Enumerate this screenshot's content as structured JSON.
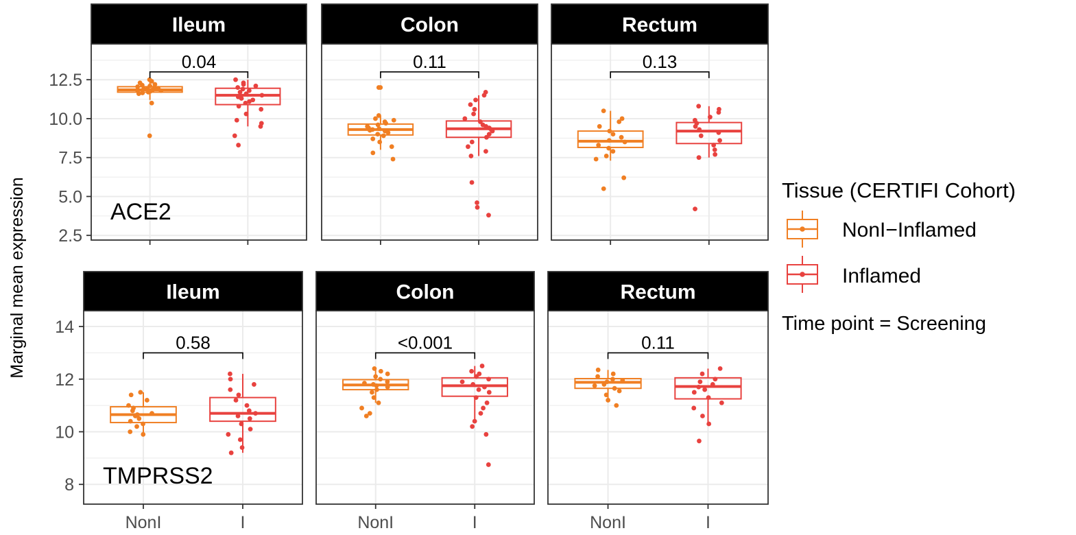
{
  "colors": {
    "noninflamed": "#F07F23",
    "inflamed": "#E8423F",
    "strip_bg": "#000000",
    "grid": "#EBEBEB"
  },
  "chart_data": {
    "type": "boxplot",
    "ylabel": "Marginal mean expression",
    "categories": [
      "NonI",
      "I"
    ],
    "legend": {
      "title": "Tissue (CERTIFI Cohort)",
      "entries": [
        "NonI−Inflamed",
        "Inflamed"
      ],
      "placement": "right"
    },
    "caption": "Time point = Screening",
    "rows": [
      {
        "gene": "ACE2",
        "ylim": [
          2.2,
          14.8
        ],
        "yticks": [
          2.5,
          5.0,
          7.5,
          10.0,
          12.5
        ],
        "ytick_labels": [
          "2.5",
          "5.0",
          "7.5",
          "10.0",
          "12.5"
        ],
        "facets": [
          {
            "title": "Ileum",
            "pvalue": "0.04",
            "bracket_y": 13.0,
            "boxes": [
              {
                "q1": 11.7,
                "median": 11.85,
                "q3": 12.05,
                "whisker_low": 11.2,
                "whisker_high": 12.5,
                "points": [
                  8.9,
                  11.0,
                  11.6,
                  11.65,
                  11.7,
                  11.75,
                  11.8,
                  11.8,
                  11.85,
                  11.9,
                  11.9,
                  11.95,
                  12.0,
                  12.05,
                  12.1,
                  12.15,
                  12.2,
                  12.3,
                  12.4,
                  12.5
                ]
              },
              {
                "q1": 10.9,
                "median": 11.5,
                "q3": 11.95,
                "whisker_low": 9.5,
                "whisker_high": 12.5,
                "points": [
                  8.3,
                  8.9,
                  9.5,
                  9.7,
                  9.9,
                  10.3,
                  10.6,
                  10.8,
                  11.0,
                  11.1,
                  11.2,
                  11.3,
                  11.4,
                  11.5,
                  11.6,
                  11.7,
                  11.8,
                  11.9,
                  12.0,
                  12.1,
                  12.2,
                  12.3,
                  12.5
                ]
              }
            ]
          },
          {
            "title": "Colon",
            "pvalue": "0.11",
            "bracket_y": 13.0,
            "boxes": [
              {
                "q1": 8.95,
                "median": 9.3,
                "q3": 9.65,
                "whisker_low": 8.0,
                "whisker_high": 10.2,
                "points": [
                  7.4,
                  7.8,
                  8.2,
                  8.5,
                  8.7,
                  8.9,
                  9.0,
                  9.1,
                  9.2,
                  9.25,
                  9.3,
                  9.35,
                  9.4,
                  9.5,
                  9.6,
                  9.7,
                  9.8,
                  9.9,
                  10.0,
                  10.2,
                  12.0,
                  12.0
                ]
              },
              {
                "q1": 8.8,
                "median": 9.35,
                "q3": 9.85,
                "whisker_low": 7.6,
                "whisker_high": 11.5,
                "points": [
                  3.8,
                  4.3,
                  4.6,
                  5.9,
                  7.6,
                  7.9,
                  8.2,
                  8.5,
                  8.8,
                  9.0,
                  9.2,
                  9.3,
                  9.4,
                  9.5,
                  9.6,
                  9.8,
                  10.0,
                  10.3,
                  10.6,
                  10.9,
                  11.2,
                  11.5,
                  11.7
                ]
              }
            ]
          },
          {
            "title": "Rectum",
            "pvalue": "0.13",
            "bracket_y": 13.0,
            "boxes": [
              {
                "q1": 8.15,
                "median": 8.55,
                "q3": 9.2,
                "whisker_low": 7.3,
                "whisker_high": 10.5,
                "points": [
                  5.5,
                  6.2,
                  7.4,
                  7.6,
                  7.9,
                  8.1,
                  8.3,
                  8.5,
                  8.6,
                  8.8,
                  9.0,
                  9.2,
                  9.5,
                  9.8,
                  10.0,
                  10.5
                ]
              },
              {
                "q1": 8.4,
                "median": 9.2,
                "q3": 9.75,
                "whisker_low": 7.5,
                "whisker_high": 10.8,
                "points": [
                  4.2,
                  7.5,
                  7.7,
                  8.0,
                  8.3,
                  8.6,
                  8.9,
                  9.1,
                  9.3,
                  9.5,
                  9.7,
                  9.9,
                  10.1,
                  10.4,
                  10.6,
                  10.8
                ]
              }
            ]
          }
        ]
      },
      {
        "gene": "TMPRSS2",
        "ylim": [
          7.25,
          14.6
        ],
        "yticks": [
          8,
          10,
          12,
          14
        ],
        "ytick_labels": [
          "8",
          "10",
          "12",
          "14"
        ],
        "facets": [
          {
            "title": "Ileum",
            "pvalue": "0.58",
            "bracket_y": 13.0,
            "boxes": [
              {
                "q1": 10.35,
                "median": 10.65,
                "q3": 10.95,
                "whisker_low": 9.9,
                "whisker_high": 11.5,
                "points": [
                  9.9,
                  10.0,
                  10.2,
                  10.3,
                  10.4,
                  10.5,
                  10.6,
                  10.65,
                  10.7,
                  10.8,
                  10.9,
                  11.0,
                  11.2,
                  11.4,
                  11.5
                ]
              },
              {
                "q1": 10.4,
                "median": 10.7,
                "q3": 11.3,
                "whisker_low": 9.2,
                "whisker_high": 12.2,
                "points": [
                  9.2,
                  9.4,
                  9.7,
                  9.9,
                  10.1,
                  10.3,
                  10.5,
                  10.6,
                  10.7,
                  10.8,
                  11.0,
                  11.2,
                  11.4,
                  11.6,
                  11.8,
                  12.0,
                  12.2
                ]
              }
            ]
          },
          {
            "title": "Colon",
            "pvalue": "<0.001",
            "bracket_y": 13.0,
            "boxes": [
              {
                "q1": 11.6,
                "median": 11.78,
                "q3": 11.98,
                "whisker_low": 11.1,
                "whisker_high": 12.4,
                "points": [
                  10.6,
                  10.7,
                  10.9,
                  11.1,
                  11.3,
                  11.5,
                  11.6,
                  11.7,
                  11.75,
                  11.8,
                  11.85,
                  11.9,
                  12.0,
                  12.1,
                  12.2,
                  12.3,
                  12.4
                ]
              },
              {
                "q1": 11.35,
                "median": 11.75,
                "q3": 12.05,
                "whisker_low": 10.4,
                "whisker_high": 12.5,
                "points": [
                  8.75,
                  9.9,
                  10.2,
                  10.4,
                  10.7,
                  10.9,
                  11.1,
                  11.3,
                  11.5,
                  11.6,
                  11.7,
                  11.8,
                  11.9,
                  12.0,
                  12.1,
                  12.2,
                  12.3,
                  12.5
                ]
              }
            ]
          },
          {
            "title": "Rectum",
            "pvalue": "0.11",
            "bracket_y": 13.0,
            "boxes": [
              {
                "q1": 11.65,
                "median": 11.88,
                "q3": 12.02,
                "whisker_low": 11.2,
                "whisker_high": 12.35,
                "points": [
                  11.0,
                  11.2,
                  11.4,
                  11.55,
                  11.65,
                  11.75,
                  11.8,
                  11.9,
                  11.95,
                  12.0,
                  12.1,
                  12.2,
                  12.35
                ]
              },
              {
                "q1": 11.25,
                "median": 11.72,
                "q3": 12.05,
                "whisker_low": 10.3,
                "whisker_high": 12.4,
                "points": [
                  9.65,
                  10.3,
                  10.6,
                  10.9,
                  11.1,
                  11.3,
                  11.5,
                  11.6,
                  11.7,
                  11.8,
                  11.9,
                  12.0,
                  12.2,
                  12.4
                ]
              }
            ]
          }
        ]
      }
    ]
  }
}
